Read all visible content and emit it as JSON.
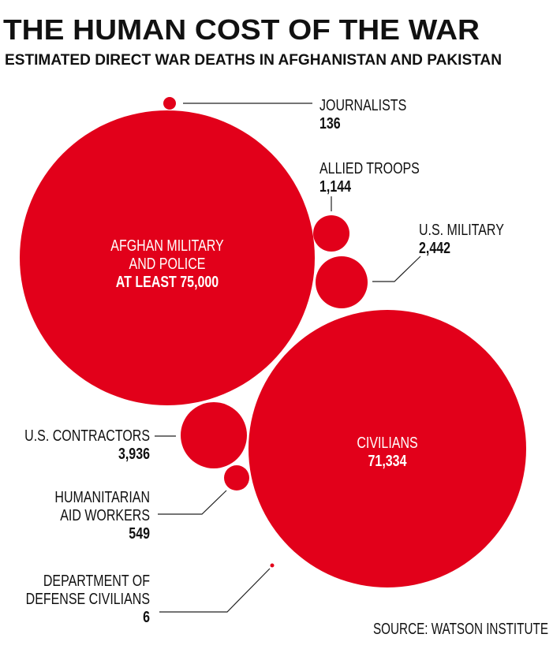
{
  "chart_data": {
    "type": "bubble",
    "title": "THE HUMAN COST OF THE WAR",
    "subtitle": "ESTIMATED DIRECT WAR DEATHS IN AFGHANISTAN AND PAKISTAN",
    "source": "SOURCE: WATSON INSTITUTE",
    "color": "#e2001a",
    "items": [
      {
        "key": "journalists",
        "label": [
          "JOURNALISTS"
        ],
        "value_label": "136",
        "value": 136
      },
      {
        "key": "allied",
        "label": [
          "ALLIED TROOPS"
        ],
        "value_label": "1,144",
        "value": 1144
      },
      {
        "key": "usmil",
        "label": [
          "U.S. MILITARY"
        ],
        "value_label": "2,442",
        "value": 2442
      },
      {
        "key": "afghan",
        "label": [
          "AFGHAN MILITARY",
          "AND POLICE"
        ],
        "value_label": "AT LEAST 75,000",
        "value": 75000
      },
      {
        "key": "contractors",
        "label": [
          "U.S. CONTRACTORS"
        ],
        "value_label": "3,936",
        "value": 3936
      },
      {
        "key": "aid",
        "label": [
          "HUMANITARIAN",
          "AID WORKERS"
        ],
        "value_label": "549",
        "value": 549
      },
      {
        "key": "dod",
        "label": [
          "DEPARTMENT OF",
          "DEFENSE CIVILIANS"
        ],
        "value_label": "6",
        "value": 6
      },
      {
        "key": "civilians",
        "label": [
          "CIVILIANS"
        ],
        "value_label": "71,334",
        "value": 71334
      }
    ]
  }
}
